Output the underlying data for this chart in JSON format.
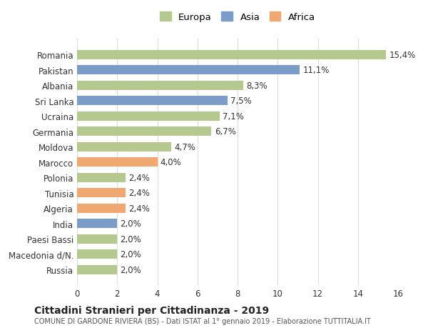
{
  "categories": [
    "Romania",
    "Pakistan",
    "Albania",
    "Sri Lanka",
    "Ucraina",
    "Germania",
    "Moldova",
    "Marocco",
    "Polonia",
    "Tunisia",
    "Algeria",
    "India",
    "Paesi Bassi",
    "Macedonia d/N.",
    "Russia"
  ],
  "values": [
    15.4,
    11.1,
    8.3,
    7.5,
    7.1,
    6.7,
    4.7,
    4.0,
    2.4,
    2.4,
    2.4,
    2.0,
    2.0,
    2.0,
    2.0
  ],
  "labels": [
    "15,4%",
    "11,1%",
    "8,3%",
    "7,5%",
    "7,1%",
    "6,7%",
    "4,7%",
    "4,0%",
    "2,4%",
    "2,4%",
    "2,4%",
    "2,0%",
    "2,0%",
    "2,0%",
    "2,0%"
  ],
  "continents": [
    "Europa",
    "Asia",
    "Europa",
    "Asia",
    "Europa",
    "Europa",
    "Europa",
    "Africa",
    "Europa",
    "Africa",
    "Africa",
    "Asia",
    "Europa",
    "Europa",
    "Europa"
  ],
  "colors": {
    "Europa": "#b5c98e",
    "Asia": "#7b9bc8",
    "Africa": "#f0a870"
  },
  "legend_names": [
    "Europa",
    "Asia",
    "Africa"
  ],
  "legend_colors": [
    "#b5c98e",
    "#7b9bc8",
    "#f0a870"
  ],
  "xlim": [
    0,
    16
  ],
  "xticks": [
    0,
    2,
    4,
    6,
    8,
    10,
    12,
    14,
    16
  ],
  "title": "Cittadini Stranieri per Cittadinanza - 2019",
  "subtitle": "COMUNE DI GARDONE RIVIERA (BS) - Dati ISTAT al 1° gennaio 2019 - Elaborazione TUTTITALIA.IT",
  "background_color": "#ffffff",
  "grid_color": "#dddddd",
  "bar_height": 0.6,
  "label_fontsize": 8.5,
  "tick_fontsize": 8.5
}
